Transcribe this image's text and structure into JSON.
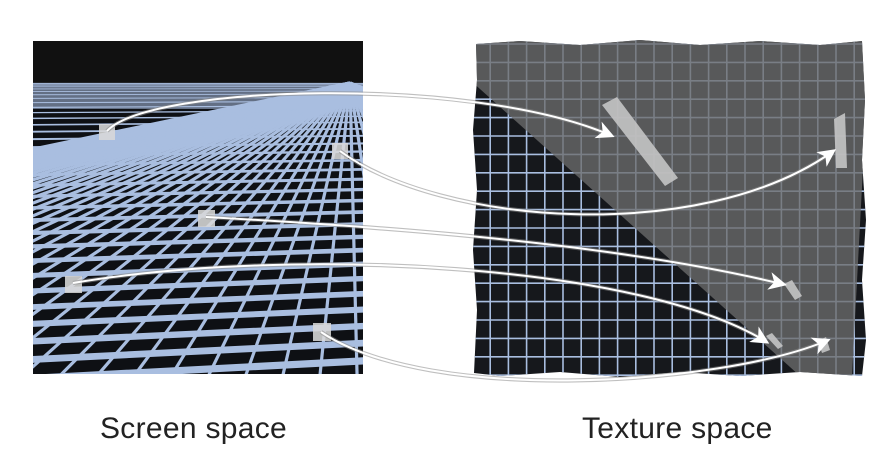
{
  "screen_panel": {
    "label": "Screen space",
    "sky_color": "#111111",
    "ground_color": "#0e1014",
    "grid_color": "#a9bee0",
    "sample_color": "#d8d8d8"
  },
  "texture_panel": {
    "label": "Texture space",
    "background_color": "#16181c",
    "grid_color": "#a9bee0",
    "overlay_color": "#6c6c6c",
    "footprint_color": "#c4c4c4"
  },
  "arrows": {
    "color": "#ffffff",
    "count": 5
  }
}
